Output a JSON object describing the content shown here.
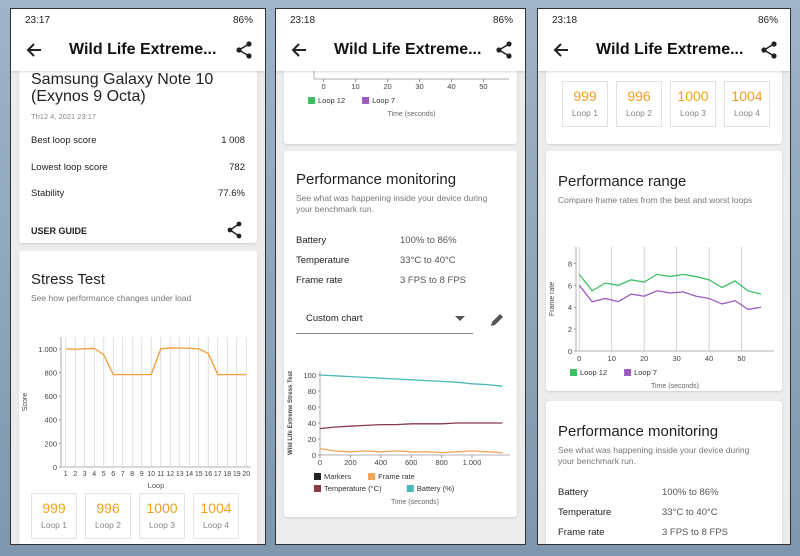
{
  "screens": [
    {
      "status": {
        "time": "23:17",
        "battery": "86%"
      },
      "title": "Wild Life Extreme...",
      "device": {
        "name": "Samsung Galaxy Note 10 (Exynos 9 Octa)",
        "date": "Th12 4, 2021 23:17"
      },
      "stats": [
        {
          "label": "Best loop score",
          "value": "1 008"
        },
        {
          "label": "Lowest loop score",
          "value": "782"
        },
        {
          "label": "Stability",
          "value": "77.6%"
        }
      ],
      "user_guide": "USER GUIDE",
      "stress_test": {
        "title": "Stress Test",
        "subtitle": "See how performance changes under load",
        "chart": {
          "type": "line",
          "y_label": "Score",
          "x_label": "Loop",
          "color": "#f5a142",
          "categories": [
            "1",
            "2",
            "3",
            "4",
            "5",
            "6",
            "7",
            "8",
            "9",
            "10",
            "11",
            "12",
            "13",
            "14",
            "15",
            "16",
            "17",
            "18",
            "19",
            "20"
          ],
          "values": [
            999,
            996,
            1000,
            1004,
            950,
            782,
            782,
            782,
            782,
            782,
            1000,
            1008,
            1005,
            1005,
            1000,
            960,
            782,
            782,
            782,
            782
          ],
          "ylim": [
            0,
            1100
          ],
          "yticks": [
            0,
            200,
            400,
            600,
            800,
            {
              "value": 1000,
              "label": "1.000"
            }
          ],
          "grid": true
        }
      },
      "loops": [
        {
          "score": "999",
          "label": "Loop 1"
        },
        {
          "score": "996",
          "label": "Loop 2"
        },
        {
          "score": "1000",
          "label": "Loop 3"
        },
        {
          "score": "1004",
          "label": "Loop 4"
        }
      ]
    },
    {
      "status": {
        "time": "23:18",
        "battery": "86%"
      },
      "title": "Wild Life Extreme...",
      "top_chart": {
        "type": "line",
        "x_label": "Time (seconds)",
        "xlim": [
          -3,
          58
        ],
        "xticks": [
          0,
          10,
          20,
          30,
          40,
          50
        ],
        "legend": [
          {
            "name": "Loop 12",
            "color": "#3cc065"
          },
          {
            "name": "Loop 7",
            "color": "#9c5bbf"
          }
        ]
      },
      "monitoring": {
        "title": "Performance monitoring",
        "subtitle": "See what was happening inside your device during your benchmark run.",
        "rows": [
          {
            "label": "Battery",
            "value": "100% to 86%"
          },
          {
            "label": "Temperature",
            "value": "33°C to 40°C"
          },
          {
            "label": "Frame rate",
            "value": "3 FPS to 8 FPS"
          }
        ],
        "dropdown": "Custom chart",
        "chart": {
          "type": "line",
          "y_label": "Wild Life Extreme Stress Test",
          "x_label": "Time (seconds)",
          "x": [
            0,
            100,
            200,
            300,
            400,
            500,
            600,
            700,
            800,
            900,
            1000,
            1100,
            1200
          ],
          "xlim": [
            0,
            1250
          ],
          "xticks": [
            0,
            200,
            400,
            600,
            800,
            {
              "value": 1000,
              "label": "1.000"
            }
          ],
          "ylim": [
            0,
            105
          ],
          "yticks": [
            0,
            20,
            40,
            60,
            80,
            100
          ],
          "markers": {
            "name": "Markers",
            "color": "#222222"
          },
          "series": [
            {
              "name": "Frame rate",
              "color": "#f2a65a",
              "values": [
                8,
                5,
                4,
                5,
                4,
                5,
                4,
                4,
                3,
                4,
                5,
                4,
                3
              ]
            },
            {
              "name": "Temperature (°C)",
              "color": "#8b3a4a",
              "values": [
                33,
                35,
                36,
                37,
                38,
                38,
                39,
                39,
                39,
                40,
                40,
                40,
                40
              ]
            },
            {
              "name": "Battery (%)",
              "color": "#4bb8b8",
              "values": [
                100,
                99,
                98,
                97,
                96,
                95,
                94,
                93,
                92,
                91,
                89,
                88,
                86
              ]
            }
          ]
        }
      }
    },
    {
      "status": {
        "time": "23:18",
        "battery": "86%"
      },
      "title": "Wild Life Extreme...",
      "loops": [
        {
          "score": "999",
          "label": "Loop 1"
        },
        {
          "score": "996",
          "label": "Loop 2"
        },
        {
          "score": "1000",
          "label": "Loop 3"
        },
        {
          "score": "1004",
          "label": "Loop 4"
        }
      ],
      "range": {
        "title": "Performance range",
        "subtitle": "Compare frame rates from the best and worst loops",
        "chart": {
          "type": "line",
          "y_label": "Frame rate",
          "x_label": "Time (seconds)",
          "x": [
            0,
            4,
            8,
            12,
            16,
            20,
            24,
            28,
            32,
            36,
            40,
            44,
            48,
            52,
            56
          ],
          "xlim": [
            -1,
            60
          ],
          "xticks": [
            0,
            10,
            20,
            30,
            40,
            50
          ],
          "ylim": [
            0,
            9.5
          ],
          "yticks": [
            0,
            2,
            4,
            6,
            8
          ],
          "grid": true,
          "series": [
            {
              "name": "Loop 12",
              "color": "#3cc065",
              "values": [
                7,
                5.5,
                6.2,
                6,
                6.5,
                6.3,
                7,
                6.8,
                7,
                6.8,
                6.5,
                5.8,
                6.4,
                5.5,
                5.2
              ]
            },
            {
              "name": "Loop 7",
              "color": "#9c5bbf",
              "values": [
                6,
                4.5,
                4.8,
                4.5,
                5.2,
                5,
                5.5,
                5.3,
                5.4,
                5,
                4.8,
                4.3,
                4.6,
                3.8,
                4
              ]
            }
          ]
        }
      },
      "monitoring": {
        "title": "Performance monitoring",
        "subtitle": "See what was happening inside your device during your benchmark run.",
        "rows": [
          {
            "label": "Battery",
            "value": "100% to 86%"
          },
          {
            "label": "Temperature",
            "value": "33°C to 40°C"
          },
          {
            "label": "Frame rate",
            "value": "3 FPS to 8 FPS"
          }
        ]
      }
    }
  ]
}
